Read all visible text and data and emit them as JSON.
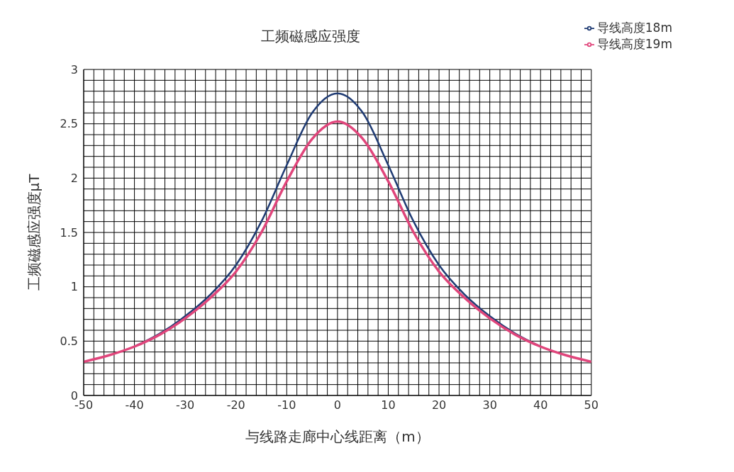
{
  "chart_data": {
    "type": "line",
    "title": "工频磁感应强度",
    "xlabel": "与线路走廊中心线距离（m）",
    "ylabel": "工频磁感应强度μT",
    "x": [
      -50,
      -45,
      -40,
      -35,
      -30,
      -25,
      -20,
      -15,
      -10,
      -5,
      0,
      5,
      10,
      15,
      20,
      25,
      30,
      35,
      40,
      45,
      50
    ],
    "series": [
      {
        "name": "导线高度18m",
        "color": "#1f3b73",
        "values": [
          null,
          null,
          0.45,
          0.57,
          0.73,
          0.93,
          1.2,
          1.6,
          2.12,
          2.6,
          2.78,
          2.6,
          2.12,
          1.6,
          1.2,
          0.93,
          0.73,
          0.57,
          0.45,
          null,
          null
        ]
      },
      {
        "name": "导线高度19m",
        "color": "#e0457b",
        "values": [
          0.31,
          0.37,
          0.45,
          0.56,
          0.71,
          0.9,
          1.14,
          1.5,
          1.97,
          2.36,
          2.52,
          2.36,
          1.97,
          1.5,
          1.14,
          0.9,
          0.71,
          0.56,
          0.45,
          0.37,
          0.31
        ]
      }
    ],
    "xlim": [
      -50,
      50
    ],
    "xticks": [
      -50,
      {
        "value": -48,
        "label": null
      },
      {
        "value": -46,
        "label": null
      },
      {
        "value": -44,
        "label": null
      },
      {
        "value": -42,
        "label": null
      },
      -40,
      {
        "value": -38,
        "label": null
      },
      {
        "value": -36,
        "label": null
      },
      {
        "value": -34,
        "label": null
      },
      {
        "value": -32,
        "label": null
      },
      -30,
      {
        "value": -28,
        "label": null
      },
      {
        "value": -26,
        "label": null
      },
      {
        "value": -24,
        "label": null
      },
      {
        "value": -22,
        "label": null
      },
      -20,
      {
        "value": -18,
        "label": null
      },
      {
        "value": -16,
        "label": null
      },
      {
        "value": -14,
        "label": null
      },
      {
        "value": -12,
        "label": null
      },
      -10,
      {
        "value": -8,
        "label": null
      },
      {
        "value": -6,
        "label": null
      },
      {
        "value": -4,
        "label": null
      },
      {
        "value": -2,
        "label": null
      },
      0,
      {
        "value": 2,
        "label": null
      },
      {
        "value": 4,
        "label": null
      },
      {
        "value": 6,
        "label": null
      },
      {
        "value": 8,
        "label": null
      },
      10,
      {
        "value": 12,
        "label": null
      },
      {
        "value": 14,
        "label": null
      },
      {
        "value": 16,
        "label": null
      },
      {
        "value": 18,
        "label": null
      },
      20,
      {
        "value": 22,
        "label": null
      },
      {
        "value": 24,
        "label": null
      },
      {
        "value": 26,
        "label": null
      },
      {
        "value": 28,
        "label": null
      },
      30,
      {
        "value": 32,
        "label": null
      },
      {
        "value": 34,
        "label": null
      },
      {
        "value": 36,
        "label": null
      },
      {
        "value": 38,
        "label": null
      },
      40,
      {
        "value": 42,
        "label": null
      },
      {
        "value": 44,
        "label": null
      },
      {
        "value": 46,
        "label": null
      },
      {
        "value": 48,
        "label": null
      },
      50
    ],
    "ylim": [
      0,
      3
    ],
    "yticks": [
      0,
      {
        "value": 0.1,
        "label": null
      },
      {
        "value": 0.2,
        "label": null
      },
      {
        "value": 0.3,
        "label": null
      },
      {
        "value": 0.4,
        "label": null
      },
      0.5,
      {
        "value": 0.6,
        "label": null
      },
      {
        "value": 0.7,
        "label": null
      },
      {
        "value": 0.8,
        "label": null
      },
      {
        "value": 0.9,
        "label": null
      },
      1,
      {
        "value": 1.1,
        "label": null
      },
      {
        "value": 1.2,
        "label": null
      },
      {
        "value": 1.3,
        "label": null
      },
      {
        "value": 1.4,
        "label": null
      },
      1.5,
      {
        "value": 1.6,
        "label": null
      },
      {
        "value": 1.7,
        "label": null
      },
      {
        "value": 1.8,
        "label": null
      },
      {
        "value": 1.9,
        "label": null
      },
      2,
      {
        "value": 2.1,
        "label": null
      },
      {
        "value": 2.2,
        "label": null
      },
      {
        "value": 2.3,
        "label": null
      },
      {
        "value": 2.4,
        "label": null
      },
      2.5,
      {
        "value": 2.6,
        "label": null
      },
      {
        "value": 2.7,
        "label": null
      },
      {
        "value": 2.8,
        "label": null
      },
      {
        "value": 2.9,
        "label": null
      },
      3
    ],
    "grid": true,
    "legend": "top right",
    "marker": "none",
    "line_style": "solid"
  }
}
